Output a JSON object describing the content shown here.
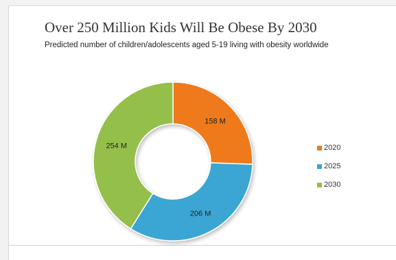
{
  "chart_data": {
    "type": "pie",
    "variant": "donut",
    "title": "Over 250 Million Kids Will Be Obese By 2030",
    "subtitle": "Predicted number of children/adolescents aged 5-19 living with obesity worldwide",
    "categories": [
      "2020",
      "2025",
      "2030"
    ],
    "values": [
      158,
      206,
      254
    ],
    "data_labels": [
      "158 M",
      "206 M",
      "254 M"
    ],
    "colors": [
      "#ee7a1f",
      "#3aa6d3",
      "#95bf4b"
    ],
    "legend_position": "right"
  }
}
